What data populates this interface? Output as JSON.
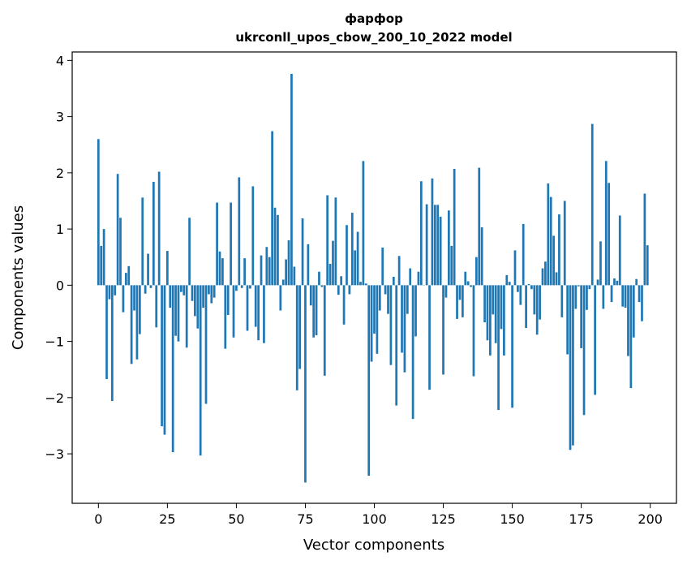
{
  "chart_data": {
    "type": "bar",
    "title_line1": "фарфор",
    "title_line2": "ukrconll_upos_cbow_200_10_2022 model",
    "xlabel": "Vector components",
    "ylabel": "Components values",
    "xlim": [
      -9.5,
      209.5
    ],
    "ylim": [
      -3.88,
      4.15
    ],
    "xticks": [
      0,
      25,
      50,
      75,
      100,
      125,
      150,
      175,
      200
    ],
    "xtick_labels": [
      "0",
      "25",
      "50",
      "75",
      "100",
      "125",
      "150",
      "175",
      "200"
    ],
    "yticks": [
      -3,
      -2,
      -1,
      0,
      1,
      2,
      3,
      4
    ],
    "ytick_labels": [
      "−3",
      "−2",
      "−1",
      "0",
      "1",
      "2",
      "3",
      "4"
    ],
    "bar_color": "#1f77b4",
    "values": [
      2.6,
      0.7,
      1.0,
      -1.67,
      -0.25,
      -2.06,
      -0.18,
      1.98,
      1.2,
      -0.48,
      0.22,
      0.34,
      -1.4,
      -0.45,
      -1.32,
      -0.87,
      1.56,
      -0.15,
      0.56,
      -0.05,
      1.84,
      -0.75,
      2.02,
      -2.51,
      -2.66,
      0.61,
      -0.4,
      -2.97,
      -0.9,
      -1.0,
      -0.12,
      -0.18,
      -1.11,
      1.2,
      -0.28,
      -0.55,
      -0.77,
      -3.03,
      -0.4,
      -2.11,
      -0.16,
      -0.32,
      -0.22,
      1.47,
      0.6,
      0.48,
      -1.13,
      -0.53,
      1.47,
      -0.93,
      -0.1,
      1.92,
      -0.05,
      0.48,
      -0.81,
      -0.06,
      1.76,
      -0.74,
      -0.98,
      0.53,
      -1.03,
      0.68,
      0.5,
      2.74,
      1.38,
      1.25,
      -0.45,
      0.1,
      0.46,
      0.8,
      3.76,
      0.33,
      -1.87,
      -1.49,
      1.19,
      -3.51,
      0.73,
      -0.36,
      -0.93,
      -0.89,
      0.24,
      -0.03,
      -1.61,
      1.6,
      0.38,
      0.79,
      1.56,
      -0.17,
      0.16,
      -0.7,
      1.07,
      -0.16,
      1.29,
      0.62,
      0.95,
      0.06,
      2.21,
      0.03,
      -3.39,
      -1.36,
      -0.86,
      -1.22,
      -0.45,
      0.67,
      -0.16,
      -0.51,
      -1.42,
      0.15,
      -2.14,
      0.52,
      -1.2,
      -1.55,
      -0.51,
      0.3,
      -2.38,
      -0.91,
      0.24,
      1.85,
      0.0,
      1.44,
      -1.86,
      1.9,
      1.43,
      1.43,
      1.22,
      -1.59,
      -0.22,
      1.33,
      0.7,
      2.07,
      -0.6,
      -0.26,
      -0.57,
      0.24,
      0.07,
      -0.03,
      -1.62,
      0.5,
      2.09,
      1.03,
      -0.66,
      -0.98,
      -1.25,
      -0.52,
      -1.03,
      -2.22,
      -0.78,
      -1.25,
      0.18,
      0.06,
      -2.18,
      0.62,
      -0.12,
      -0.35,
      1.09,
      -0.76,
      0.02,
      -0.07,
      -0.52,
      -0.88,
      -0.61,
      0.3,
      0.42,
      1.81,
      1.57,
      0.88,
      0.23,
      1.26,
      -0.57,
      1.5,
      -1.23,
      -2.93,
      -2.85,
      -0.42,
      -0.02,
      -1.12,
      -2.31,
      -0.44,
      -0.07,
      2.87,
      -1.95,
      0.1,
      0.78,
      -0.42,
      2.21,
      1.82,
      -0.3,
      0.12,
      0.08,
      1.24,
      -0.38,
      -0.4,
      -1.26,
      -1.83,
      -0.93,
      0.11,
      -0.3,
      -0.64,
      1.63,
      0.71
    ]
  }
}
